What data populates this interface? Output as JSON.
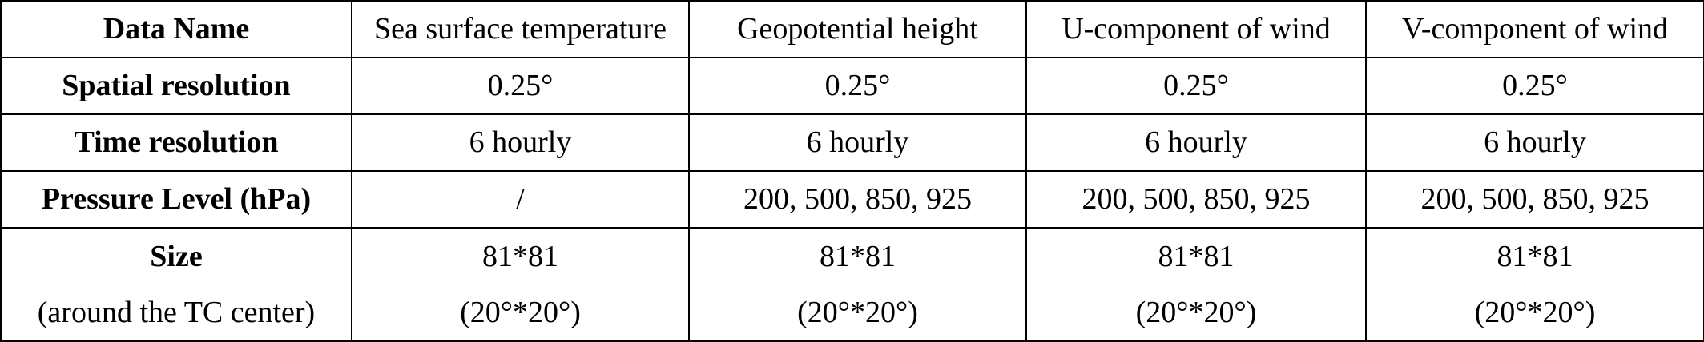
{
  "table": {
    "header_row": {
      "label": "Data Name",
      "columns": [
        "Sea surface temperature",
        "Geopotential height",
        "U-component of wind",
        "V-component of wind"
      ]
    },
    "rows": [
      {
        "label": "Spatial resolution",
        "values": [
          "0.25°",
          "0.25°",
          "0.25°",
          "0.25°"
        ]
      },
      {
        "label": "Time resolution",
        "values": [
          "6 hourly",
          "6 hourly",
          "6 hourly",
          "6 hourly"
        ]
      },
      {
        "label": "Pressure Level (hPa)",
        "values": [
          "/",
          "200, 500, 850, 925",
          "200, 500, 850, 925",
          "200, 500, 850, 925"
        ]
      }
    ],
    "size_row": {
      "label": "Size",
      "sublabel": "(around the TC center)",
      "values": [
        {
          "grid": "81*81",
          "extent": "(20°*20°)"
        },
        {
          "grid": "81*81",
          "extent": "(20°*20°)"
        },
        {
          "grid": "81*81",
          "extent": "(20°*20°)"
        },
        {
          "grid": "81*81",
          "extent": "(20°*20°)"
        }
      ]
    }
  }
}
